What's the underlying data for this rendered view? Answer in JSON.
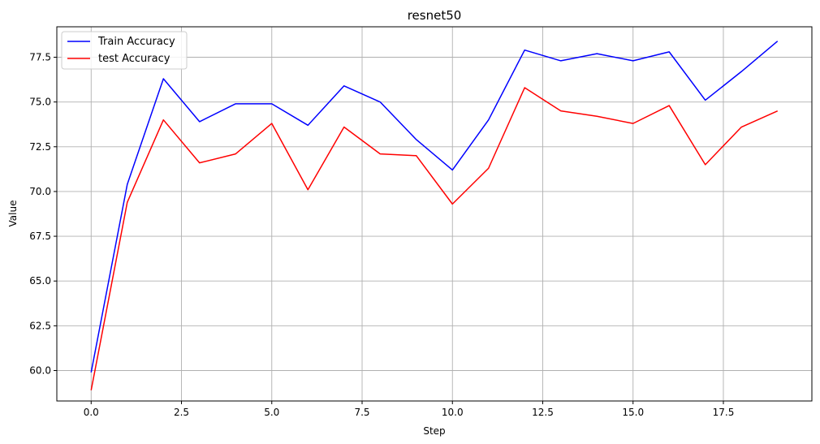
{
  "chart_data": {
    "type": "line",
    "title": "resnet50",
    "xlabel": "Step",
    "ylabel": "Value",
    "xlim": [
      -0.95,
      19.95
    ],
    "ylim": [
      58.3,
      79.2
    ],
    "xticks": [
      0.0,
      2.5,
      5.0,
      7.5,
      10.0,
      12.5,
      15.0,
      17.5
    ],
    "xtick_labels": [
      "0.0",
      "2.5",
      "5.0",
      "7.5",
      "10.0",
      "12.5",
      "15.0",
      "17.5"
    ],
    "yticks": [
      60.0,
      62.5,
      65.0,
      67.5,
      70.0,
      72.5,
      75.0,
      77.5
    ],
    "ytick_labels": [
      "60.0",
      "62.5",
      "65.0",
      "67.5",
      "70.0",
      "72.5",
      "75.0",
      "77.5"
    ],
    "grid": true,
    "legend_position": "top-left",
    "x": [
      0,
      1,
      2,
      3,
      4,
      5,
      6,
      7,
      8,
      9,
      10,
      11,
      12,
      13,
      14,
      15,
      16,
      17,
      18,
      19
    ],
    "series": [
      {
        "name": "Train Accuracy",
        "color": "#0000ff",
        "values": [
          59.9,
          70.4,
          76.3,
          73.9,
          74.9,
          74.9,
          73.7,
          75.9,
          75.0,
          72.9,
          71.2,
          74.0,
          77.9,
          77.3,
          77.7,
          77.3,
          77.8,
          75.1,
          76.7,
          78.4
        ]
      },
      {
        "name": "test Accuracy",
        "color": "#ff0000",
        "values": [
          58.9,
          69.4,
          74.0,
          71.6,
          72.1,
          73.8,
          70.1,
          73.6,
          72.1,
          72.0,
          69.3,
          71.3,
          75.8,
          74.5,
          74.2,
          73.8,
          74.8,
          71.5,
          73.6,
          74.5
        ]
      }
    ]
  }
}
